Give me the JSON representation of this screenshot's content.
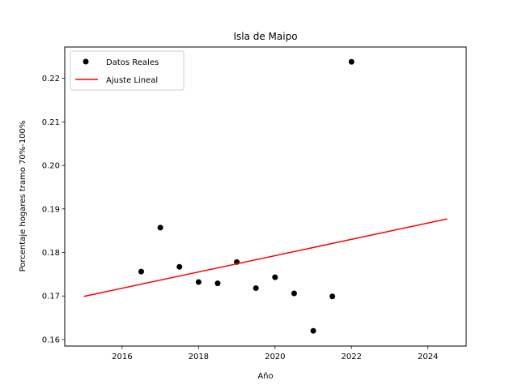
{
  "chart_data": {
    "type": "scatter",
    "title": "Isla de Maipo",
    "xlabel": "Año",
    "ylabel": "Porcentaje hogares tramo 70%-100%",
    "xlim": [
      2014.5,
      2025.0
    ],
    "ylim": [
      0.1585,
      0.2272
    ],
    "xticks": [
      2016,
      2018,
      2020,
      2022,
      2024
    ],
    "yticks": [
      0.16,
      0.17,
      0.18,
      0.19,
      0.2,
      0.21,
      0.22
    ],
    "ytick_labels": [
      "0.16",
      "0.17",
      "0.18",
      "0.19",
      "0.20",
      "0.21",
      "0.22"
    ],
    "legend_position": "upper-left",
    "grid": false,
    "series": [
      {
        "name": "Datos Reales",
        "kind": "scatter",
        "color": "#000000",
        "x": [
          2016.5,
          2017.0,
          2017.5,
          2018.0,
          2018.5,
          2019.0,
          2019.5,
          2020.0,
          2020.5,
          2021.0,
          2021.5,
          2022.0
        ],
        "y": [
          0.1756,
          0.1857,
          0.1767,
          0.1732,
          0.1729,
          0.1778,
          0.1718,
          0.1743,
          0.1706,
          0.162,
          0.1699,
          0.2238
        ]
      },
      {
        "name": "Ajuste Lineal",
        "kind": "line",
        "color": "#ff0000",
        "x": [
          2015.0,
          2024.5
        ],
        "y": [
          0.1699,
          0.1877
        ]
      }
    ]
  }
}
